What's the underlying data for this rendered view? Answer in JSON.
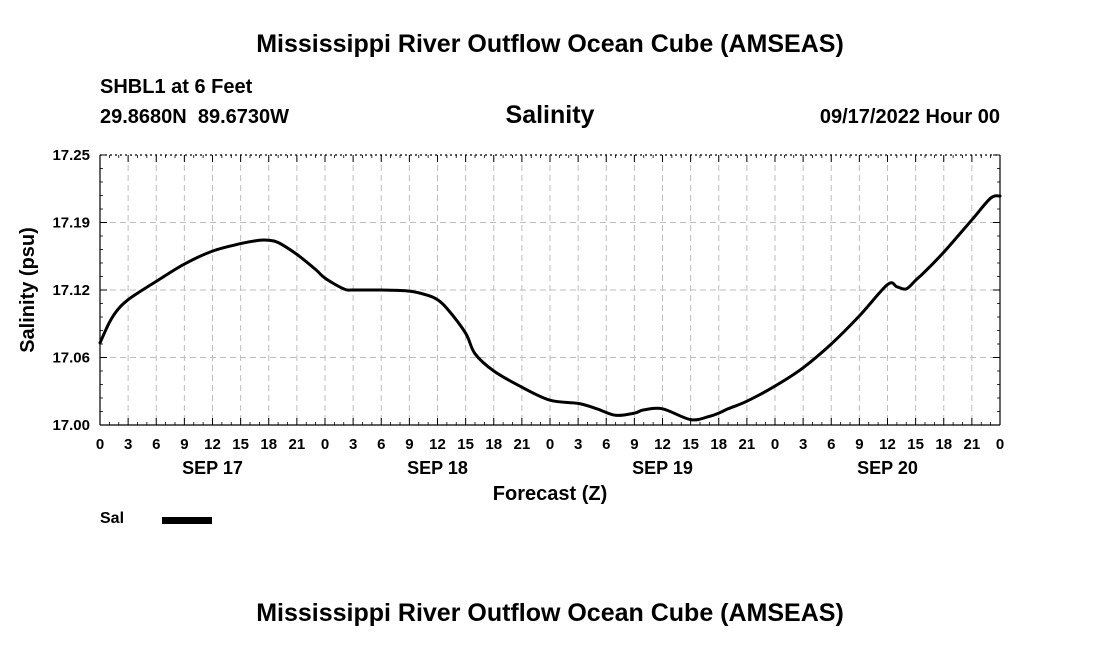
{
  "header": {
    "title": "Mississippi River Outflow Ocean Cube (AMSEAS)",
    "station": "SHBL1 at 6 Feet",
    "coordinates": "29.8680N  89.6730W",
    "timestamp": "09/17/2022 Hour 00"
  },
  "footer": {
    "title": "Mississippi River Outflow Ocean Cube (AMSEAS)"
  },
  "chart_data": {
    "type": "line",
    "title": "Salinity",
    "xlabel": "Forecast (Z)",
    "ylabel": "Salinity (psu)",
    "xlim_hours": [
      0,
      96
    ],
    "ylim": [
      17.0,
      17.25
    ],
    "yticks": [
      "17.00",
      "17.06",
      "17.12",
      "17.19",
      "17.25"
    ],
    "ytick_values": [
      17.0,
      17.0625,
      17.125,
      17.1875,
      17.25
    ],
    "xticks": {
      "hours": [
        0,
        3,
        6,
        9,
        12,
        15,
        18,
        21,
        24,
        27,
        30,
        33,
        36,
        39,
        42,
        45,
        48,
        51,
        54,
        57,
        60,
        63,
        66,
        69,
        72,
        75,
        78,
        81,
        84,
        87,
        90,
        93,
        96
      ],
      "labels": [
        "0",
        "3",
        "6",
        "9",
        "12",
        "15",
        "18",
        "21",
        "0",
        "3",
        "6",
        "9",
        "12",
        "15",
        "18",
        "21",
        "0",
        "3",
        "6",
        "9",
        "12",
        "15",
        "18",
        "21",
        "0",
        "3",
        "6",
        "9",
        "12",
        "15",
        "18",
        "21",
        "0"
      ]
    },
    "day_labels": [
      {
        "label": "SEP 17",
        "hour": 12
      },
      {
        "label": "SEP 18",
        "hour": 36
      },
      {
        "label": "SEP 19",
        "hour": 60
      },
      {
        "label": "SEP 20",
        "hour": 84
      }
    ],
    "grid": true,
    "series": [
      {
        "name": "Sal",
        "x": [
          0,
          1,
          2,
          3,
          4,
          6,
          9,
          12,
          15,
          17,
          18,
          19,
          21,
          23,
          24,
          26,
          27,
          30,
          33,
          35,
          36,
          37,
          39,
          40,
          42,
          45,
          48,
          51,
          53,
          55,
          57,
          58,
          60,
          63,
          65,
          66,
          67,
          69,
          72,
          75,
          78,
          81,
          84,
          85,
          86,
          87,
          88,
          90,
          93,
          95,
          96
        ],
        "values": [
          17.076,
          17.095,
          17.108,
          17.116,
          17.122,
          17.133,
          17.149,
          17.161,
          17.168,
          17.171,
          17.171,
          17.169,
          17.158,
          17.144,
          17.136,
          17.126,
          17.125,
          17.125,
          17.124,
          17.12,
          17.116,
          17.108,
          17.085,
          17.066,
          17.05,
          17.035,
          17.023,
          17.02,
          17.015,
          17.009,
          17.011,
          17.014,
          17.015,
          17.005,
          17.008,
          17.011,
          17.015,
          17.022,
          17.036,
          17.053,
          17.075,
          17.101,
          17.13,
          17.128,
          17.126,
          17.134,
          17.142,
          17.16,
          17.19,
          17.21,
          17.212
        ]
      }
    ],
    "legend": {
      "label": "Sal",
      "position": "bottom-left"
    }
  }
}
